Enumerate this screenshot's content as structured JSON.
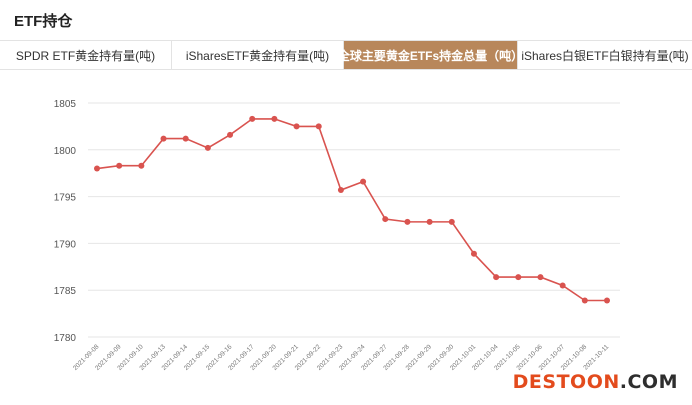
{
  "header": {
    "title": "ETF持仓"
  },
  "tabs": [
    {
      "label": "SPDR ETF黄金持有量(吨)",
      "active": false
    },
    {
      "label": "iSharesETF黄金持有量(吨)",
      "active": false
    },
    {
      "label": "全球主要黄金ETFs持金总量（吨）",
      "active": true
    },
    {
      "label": "iShares白银ETF白银持有量(吨)",
      "active": false
    }
  ],
  "watermark": {
    "main": "DESTOON",
    "domain": ".COM"
  },
  "colors": {
    "accent": "#b8875b",
    "line": "#d9534f",
    "grid": "#e6e6e6"
  },
  "chart_data": {
    "type": "line",
    "title": "",
    "xlabel": "",
    "ylabel": "",
    "ylim": [
      1780,
      1805
    ],
    "yticks": [
      1780,
      1785,
      1790,
      1795,
      1800,
      1805
    ],
    "grid": true,
    "categories": [
      "2021-09-08",
      "2021-09-09",
      "2021-09-10",
      "2021-09-13",
      "2021-09-14",
      "2021-09-15",
      "2021-09-16",
      "2021-09-17",
      "2021-09-20",
      "2021-09-21",
      "2021-09-22",
      "2021-09-23",
      "2021-09-24",
      "2021-09-27",
      "2021-09-28",
      "2021-09-29",
      "2021-09-30",
      "2021-10-01",
      "2021-10-04",
      "2021-10-05",
      "2021-10-06",
      "2021-10-07",
      "2021-10-08",
      "2021-10-11"
    ],
    "series": [
      {
        "values": [
          1798.0,
          1798.3,
          1798.3,
          1801.2,
          1801.2,
          1800.2,
          1801.6,
          1803.3,
          1803.3,
          1802.5,
          1802.5,
          1795.7,
          1796.6,
          1792.6,
          1792.3,
          1792.3,
          1792.3,
          1788.9,
          1786.4,
          1786.4,
          1786.4,
          1785.5,
          1783.9,
          1783.9
        ]
      }
    ]
  }
}
